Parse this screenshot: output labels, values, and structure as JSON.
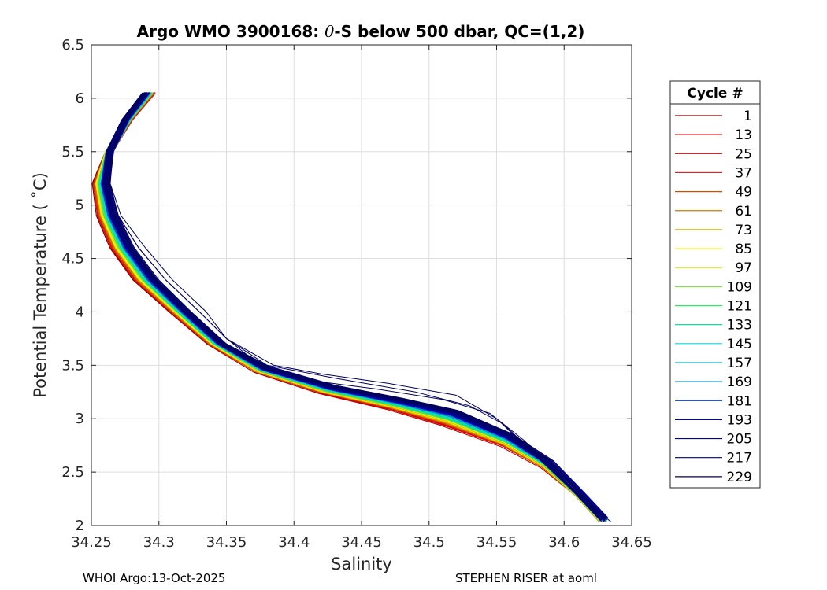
{
  "chart_data": {
    "type": "line",
    "title_parts": {
      "before_symbol": "Argo WMO 3900168: ",
      "symbol": "θ",
      "after_symbol": "-S below 500 dbar,  QC=(1,2)"
    },
    "xlabel": "Salinity",
    "ylabel": "Potential Temperature ( ˚C)",
    "xlim": [
      34.25,
      34.65
    ],
    "ylim": [
      2,
      6.5
    ],
    "x_ticks": [
      34.25,
      34.3,
      34.35,
      34.4,
      34.45,
      34.5,
      34.55,
      34.6,
      34.65
    ],
    "x_tick_labels": [
      "34.25",
      "34.3",
      "34.35",
      "34.4",
      "34.45",
      "34.5",
      "34.55",
      "34.6",
      "34.65"
    ],
    "y_ticks": [
      2,
      2.5,
      3,
      3.5,
      4,
      4.5,
      5,
      5.5,
      6,
      6.5
    ],
    "y_tick_labels": [
      "2",
      "2.5",
      "3",
      "3.5",
      "4",
      "4.5",
      "5",
      "5.5",
      "6",
      "6.5"
    ],
    "grid": true,
    "legend": {
      "title": "Cycle #",
      "placement": "outside-right",
      "entries": [
        {
          "label": "1",
          "color": "#800000"
        },
        {
          "label": "13",
          "color": "#c80000"
        },
        {
          "label": "25",
          "color": "#e60000"
        },
        {
          "label": "37",
          "color": "#e62020"
        },
        {
          "label": "49",
          "color": "#dc4a00"
        },
        {
          "label": "61",
          "color": "#c87a00"
        },
        {
          "label": "73",
          "color": "#d4b000"
        },
        {
          "label": "85",
          "color": "#f0f000"
        },
        {
          "label": "97",
          "color": "#c8e600"
        },
        {
          "label": "109",
          "color": "#78e632"
        },
        {
          "label": "121",
          "color": "#32e664"
        },
        {
          "label": "133",
          "color": "#14dca0"
        },
        {
          "label": "145",
          "color": "#00dcdc"
        },
        {
          "label": "157",
          "color": "#00b4d2"
        },
        {
          "label": "169",
          "color": "#0082b4"
        },
        {
          "label": "181",
          "color": "#0046be"
        },
        {
          "label": "193",
          "color": "#0000c8"
        },
        {
          "label": "205",
          "color": "#000096"
        },
        {
          "label": "217",
          "color": "#000078"
        },
        {
          "label": "229",
          "color": "#00005a"
        }
      ]
    },
    "profile_shape": {
      "warm_group": [
        [
          34.295,
          6.05
        ],
        [
          34.278,
          5.8
        ],
        [
          34.263,
          5.5
        ],
        [
          34.253,
          5.2
        ],
        [
          34.256,
          4.9
        ],
        [
          34.266,
          4.6
        ],
        [
          34.283,
          4.3
        ],
        [
          34.31,
          4.0
        ],
        [
          34.338,
          3.7
        ],
        [
          34.372,
          3.45
        ],
        [
          34.42,
          3.25
        ],
        [
          34.47,
          3.1
        ],
        [
          34.51,
          2.95
        ],
        [
          34.555,
          2.75
        ],
        [
          34.585,
          2.55
        ],
        [
          34.61,
          2.3
        ],
        [
          34.628,
          2.05
        ]
      ],
      "cold_group": [
        [
          34.29,
          6.05
        ],
        [
          34.275,
          5.8
        ],
        [
          34.264,
          5.5
        ],
        [
          34.262,
          5.2
        ],
        [
          34.268,
          4.9
        ],
        [
          34.28,
          4.6
        ],
        [
          34.298,
          4.3
        ],
        [
          34.322,
          4.0
        ],
        [
          34.348,
          3.7
        ],
        [
          34.38,
          3.48
        ],
        [
          34.43,
          3.3
        ],
        [
          34.48,
          3.18
        ],
        [
          34.52,
          3.07
        ],
        [
          34.56,
          2.85
        ],
        [
          34.59,
          2.6
        ],
        [
          34.612,
          2.3
        ],
        [
          34.63,
          2.06
        ]
      ],
      "outliers": [
        [
          [
            34.29,
            6.05
          ],
          [
            34.275,
            5.8
          ],
          [
            34.265,
            5.5
          ],
          [
            34.263,
            5.2
          ],
          [
            34.27,
            4.9
          ],
          [
            34.285,
            4.6
          ],
          [
            34.305,
            4.3
          ],
          [
            34.33,
            4.0
          ],
          [
            34.35,
            3.75
          ],
          [
            34.385,
            3.5
          ],
          [
            34.42,
            3.42
          ],
          [
            34.47,
            3.33
          ],
          [
            34.52,
            3.22
          ],
          [
            34.55,
            3.0
          ],
          [
            34.575,
            2.7
          ],
          [
            34.6,
            2.4
          ],
          [
            34.63,
            2.05
          ]
        ],
        [
          [
            34.29,
            6.05
          ],
          [
            34.275,
            5.8
          ],
          [
            34.265,
            5.5
          ],
          [
            34.263,
            5.2
          ],
          [
            34.27,
            4.9
          ],
          [
            34.285,
            4.6
          ],
          [
            34.305,
            4.3
          ],
          [
            34.33,
            4.0
          ],
          [
            34.35,
            3.75
          ],
          [
            34.38,
            3.5
          ],
          [
            34.43,
            3.38
          ],
          [
            34.49,
            3.25
          ],
          [
            34.53,
            3.12
          ],
          [
            34.555,
            2.95
          ],
          [
            34.58,
            2.65
          ],
          [
            34.605,
            2.35
          ],
          [
            34.635,
            2.03
          ]
        ],
        [
          [
            34.288,
            6.04
          ],
          [
            34.274,
            5.8
          ],
          [
            34.265,
            5.5
          ],
          [
            34.264,
            5.2
          ],
          [
            34.272,
            4.9
          ],
          [
            34.29,
            4.6
          ],
          [
            34.31,
            4.3
          ],
          [
            34.335,
            4.0
          ],
          [
            34.35,
            3.75
          ],
          [
            34.375,
            3.5
          ],
          [
            34.41,
            3.36
          ],
          [
            34.46,
            3.28
          ],
          [
            34.51,
            3.18
          ],
          [
            34.545,
            3.05
          ],
          [
            34.57,
            2.8
          ],
          [
            34.6,
            2.45
          ],
          [
            34.63,
            2.05
          ]
        ]
      ]
    }
  },
  "footer": {
    "left": "WHOI Argo:13-Oct-2025",
    "right": "STEPHEN RISER at aoml"
  }
}
